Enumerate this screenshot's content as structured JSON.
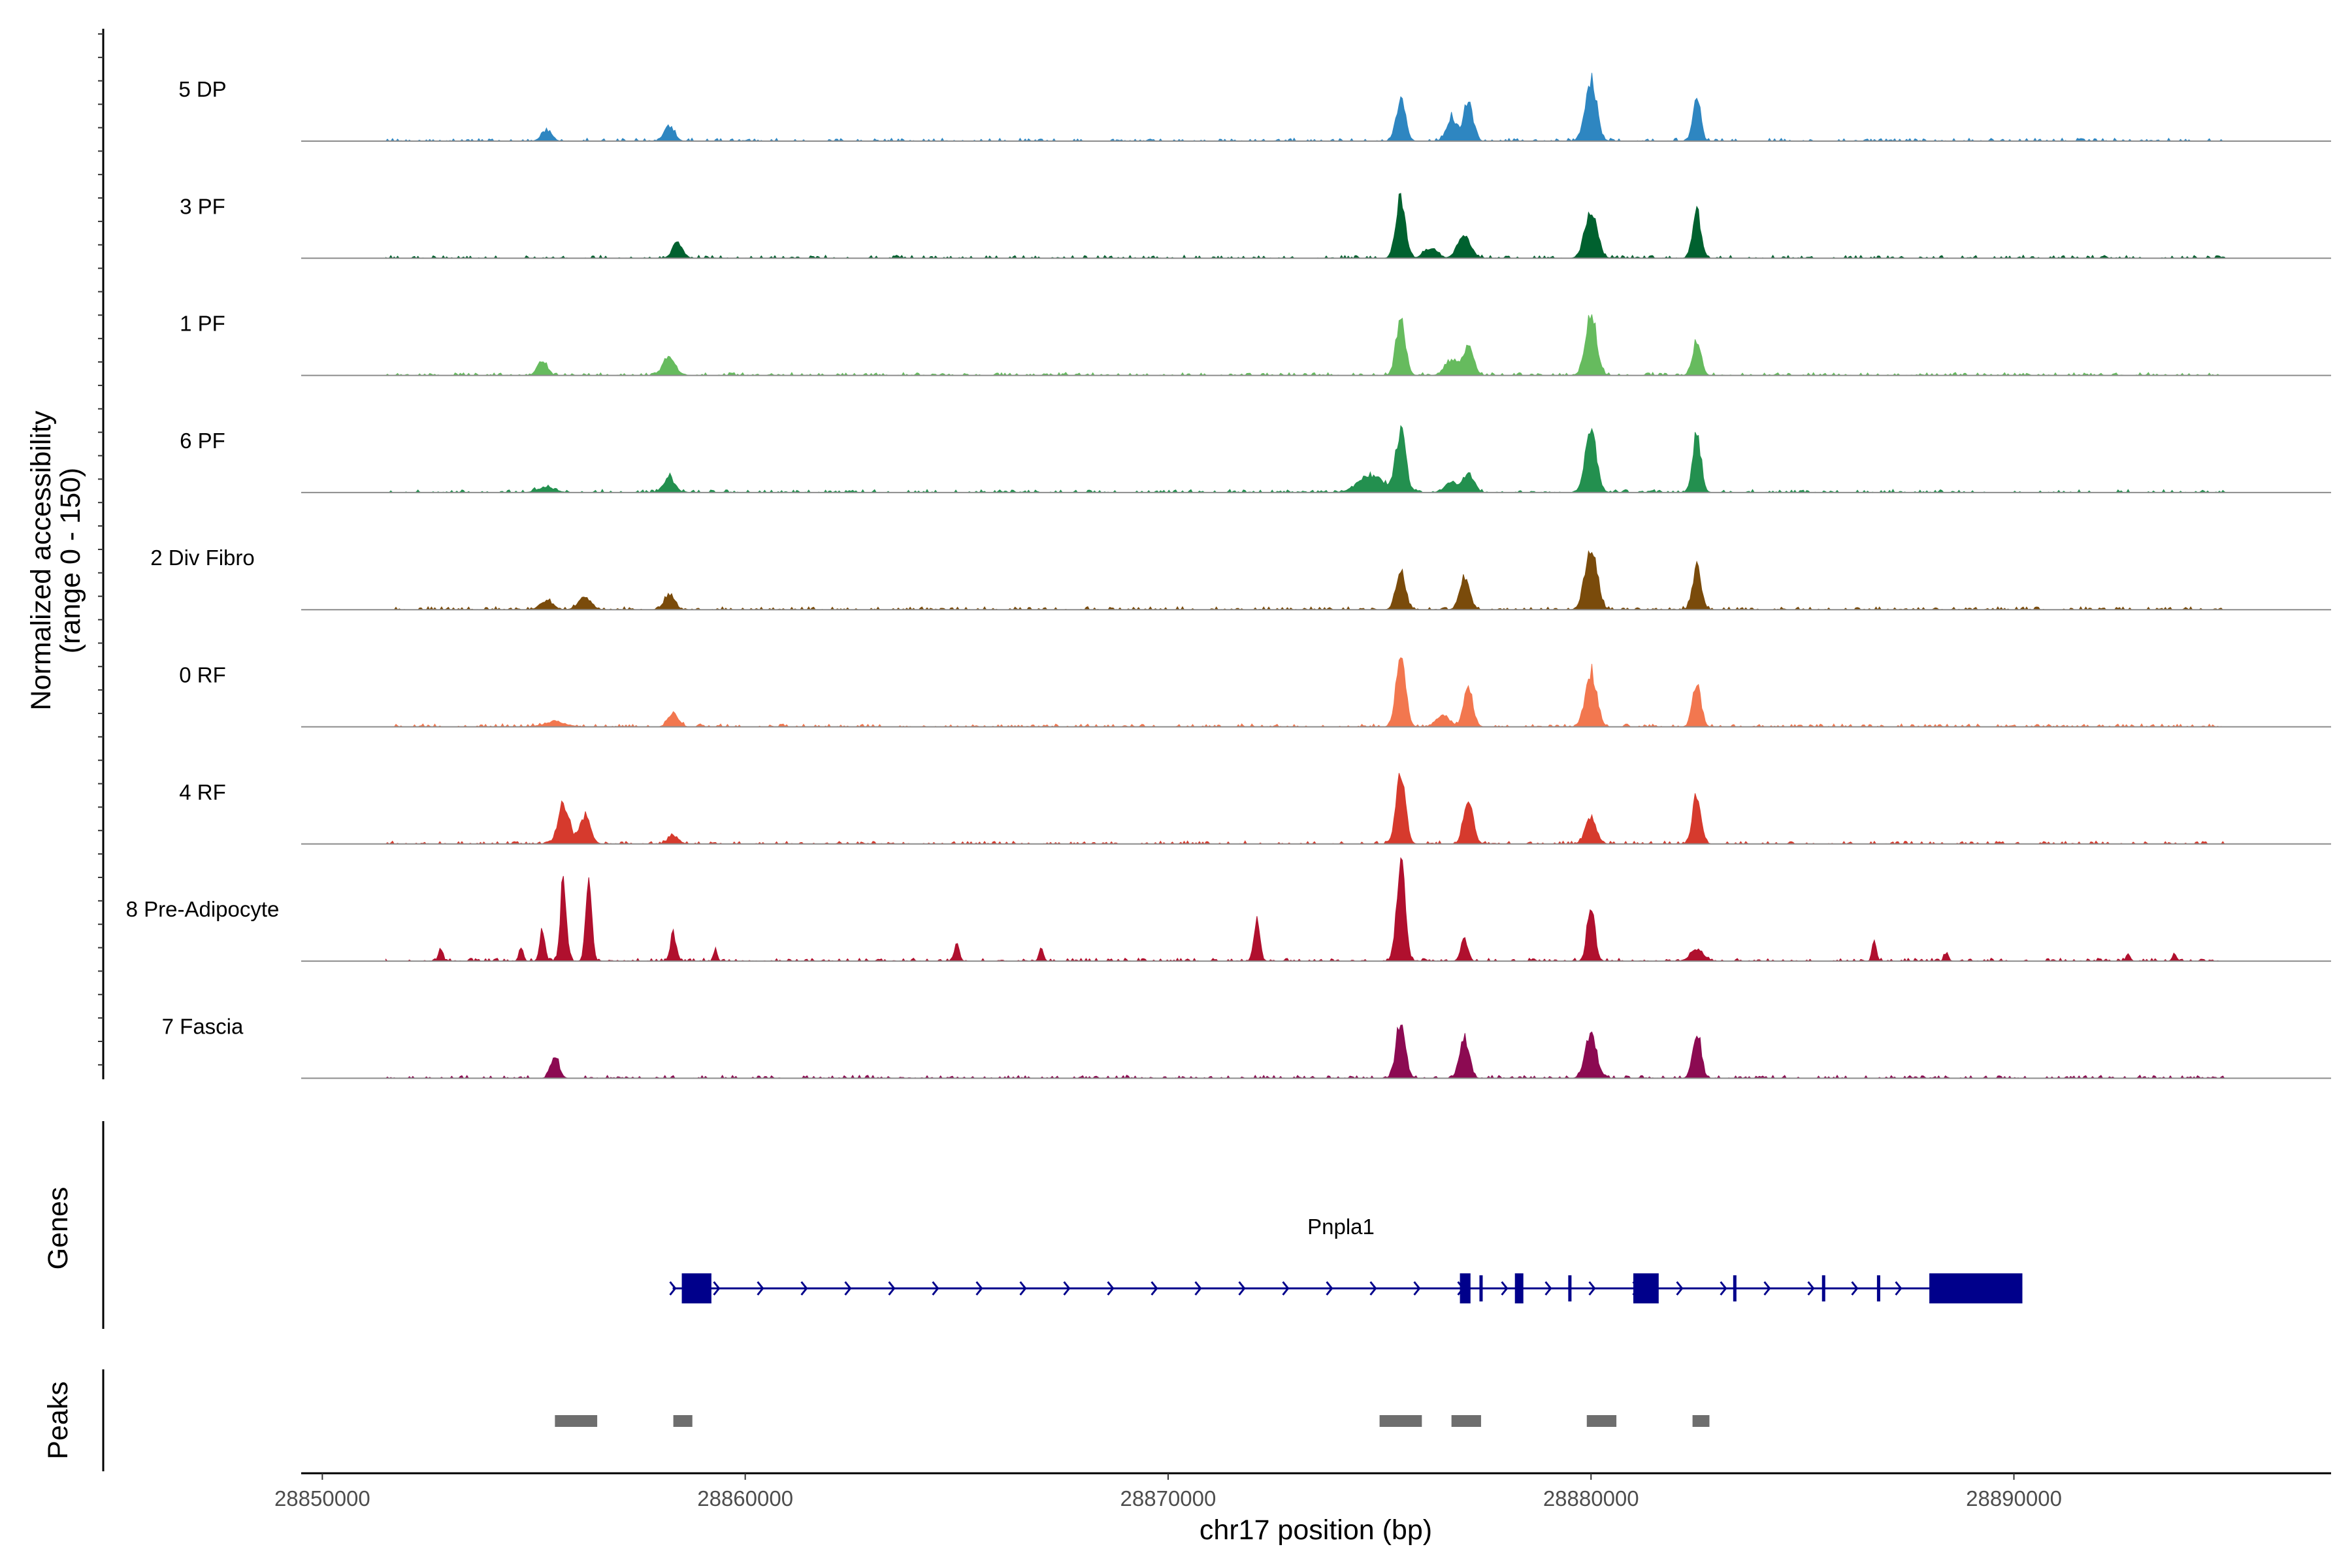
{
  "chart_data": {
    "type": "area",
    "title": "",
    "xlabel": "chr17 position (bp)",
    "ylabel_line1": "Normalized accessibility",
    "ylabel_line2": "(range 0 - 150)",
    "ylim": [
      0,
      150
    ],
    "xlim": [
      28849500,
      28897500
    ],
    "x_ticks": [
      28850000,
      28860000,
      28870000,
      28880000,
      28890000
    ],
    "x_tick_labels": [
      "28850000",
      "28860000",
      "28870000",
      "28880000",
      "28890000"
    ],
    "signal_range": [
      28851500,
      28895000
    ],
    "series": [
      {
        "name": "5 DP",
        "color": "#2E86C1",
        "peaks": [
          [
            28855300,
            6,
            120
          ],
          [
            28858200,
            9,
            120
          ],
          [
            28875500,
            24,
            110
          ],
          [
            28876700,
            14,
            120
          ],
          [
            28877100,
            22,
            110
          ],
          [
            28880000,
            36,
            130
          ],
          [
            28882500,
            26,
            90
          ]
        ]
      },
      {
        "name": "3 PF",
        "color": "#00612F",
        "peaks": [
          [
            28858400,
            9,
            120
          ],
          [
            28875500,
            37,
            110
          ],
          [
            28876200,
            6,
            150
          ],
          [
            28877000,
            14,
            150
          ],
          [
            28880000,
            30,
            140
          ],
          [
            28882500,
            27,
            100
          ]
        ]
      },
      {
        "name": "1 PF",
        "color": "#66BB5E",
        "peaks": [
          [
            28855200,
            9,
            110
          ],
          [
            28858200,
            10,
            150
          ],
          [
            28875500,
            32,
            110
          ],
          [
            28876700,
            9,
            150
          ],
          [
            28877100,
            17,
            120
          ],
          [
            28880000,
            36,
            130
          ],
          [
            28882500,
            20,
            100
          ]
        ]
      },
      {
        "name": "6 PF",
        "color": "#23904F",
        "peaks": [
          [
            28855300,
            3,
            200
          ],
          [
            28858200,
            9,
            130
          ],
          [
            28874800,
            10,
            300
          ],
          [
            28875500,
            37,
            110
          ],
          [
            28876700,
            6,
            150
          ],
          [
            28877100,
            11,
            130
          ],
          [
            28880000,
            37,
            130
          ],
          [
            28882500,
            32,
            100
          ]
        ]
      },
      {
        "name": "2 Div Fibro",
        "color": "#7A4B0B",
        "peaks": [
          [
            28855300,
            5,
            150
          ],
          [
            28856200,
            7,
            150
          ],
          [
            28858200,
            9,
            120
          ],
          [
            28875500,
            23,
            110
          ],
          [
            28877000,
            19,
            110
          ],
          [
            28880000,
            38,
            140
          ],
          [
            28882500,
            25,
            100
          ]
        ]
      },
      {
        "name": "0 RF",
        "color": "#F2774F",
        "peaks": [
          [
            28855500,
            3,
            250
          ],
          [
            28858300,
            8,
            120
          ],
          [
            28875500,
            44,
            110
          ],
          [
            28876500,
            7,
            150
          ],
          [
            28877100,
            22,
            110
          ],
          [
            28880000,
            33,
            130
          ],
          [
            28882500,
            25,
            100
          ]
        ]
      },
      {
        "name": "4 RF",
        "color": "#D63A2D",
        "peaks": [
          [
            28855700,
            23,
            130
          ],
          [
            28856200,
            16,
            130
          ],
          [
            28858300,
            5,
            120
          ],
          [
            28875500,
            42,
            110
          ],
          [
            28877100,
            27,
            110
          ],
          [
            28880000,
            15,
            130
          ],
          [
            28882500,
            29,
            100
          ]
        ]
      },
      {
        "name": "8 Pre-Adipocyte",
        "color": "#B0102E",
        "peaks": [
          [
            28852800,
            8,
            50
          ],
          [
            28854700,
            8,
            50
          ],
          [
            28855200,
            20,
            60
          ],
          [
            28855700,
            48,
            70
          ],
          [
            28856300,
            45,
            70
          ],
          [
            28858300,
            16,
            70
          ],
          [
            28859300,
            7,
            40
          ],
          [
            28865000,
            10,
            60
          ],
          [
            28867000,
            8,
            50
          ],
          [
            28872100,
            24,
            70
          ],
          [
            28875500,
            58,
            100
          ],
          [
            28877000,
            14,
            80
          ],
          [
            28880000,
            34,
            90
          ],
          [
            28882500,
            7,
            150
          ],
          [
            28886700,
            11,
            50
          ],
          [
            28888400,
            5,
            50
          ],
          [
            28892700,
            4,
            50
          ],
          [
            28893800,
            4,
            50
          ]
        ]
      },
      {
        "name": "7 Fascia",
        "color": "#8C0A52",
        "peaks": [
          [
            28855500,
            12,
            100
          ],
          [
            28875500,
            32,
            110
          ],
          [
            28877000,
            24,
            110
          ],
          [
            28880000,
            26,
            130
          ],
          [
            28882500,
            27,
            100
          ]
        ]
      }
    ],
    "genes": [
      {
        "name": "Pnpla1",
        "strand": "+",
        "start": 28858500,
        "end": 28890200,
        "exons": [
          [
            28858500,
            28859200
          ],
          [
            28876900,
            28877150
          ],
          [
            28878200,
            28878400
          ],
          [
            28881000,
            28881600
          ],
          [
            28888000,
            28890200
          ]
        ],
        "small_exons": [
          28877400,
          28879500,
          28883400,
          28885500,
          28886800
        ]
      }
    ],
    "peaks_track": [
      [
        28855500,
        28856500
      ],
      [
        28858300,
        28858750
      ],
      [
        28875000,
        28876000
      ],
      [
        28876700,
        28877400
      ],
      [
        28879900,
        28880600
      ],
      [
        28882400,
        28882800
      ]
    ],
    "panel_labels": {
      "genes": "Genes",
      "peaks": "Peaks"
    }
  }
}
